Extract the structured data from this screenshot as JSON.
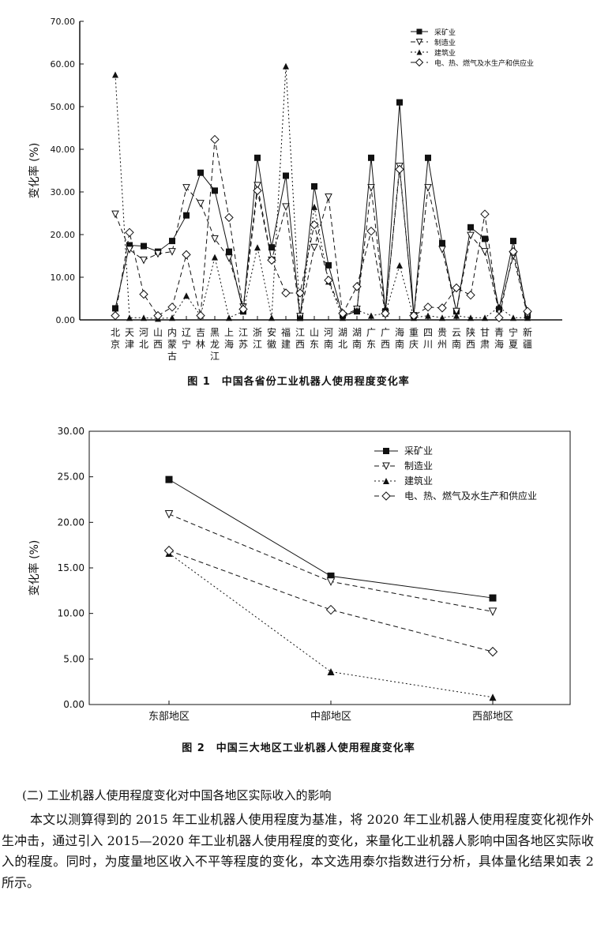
{
  "figure1": {
    "caption": "图 1　中国各省份工业机器人使用程度变化率",
    "ylabel": "变化率 (%)",
    "yticks": [
      "0.00",
      "10.00",
      "20.00",
      "30.00",
      "40.00",
      "50.00",
      "60.00",
      "70.00"
    ]
  },
  "figure2": {
    "caption": "图 2　中国三大地区工业机器人使用程度变化率",
    "ylabel": "变化率 (%)",
    "yticks": [
      "0.00",
      "5.00",
      "10.00",
      "15.00",
      "20.00",
      "25.00",
      "30.00"
    ]
  },
  "body": {
    "section_title": "(二) 工业机器人使用程度变化对中国各地区实际收入的影响",
    "paragraph": "本文以测算得到的 2015 年工业机器人使用程度为基准，将 2020 年工业机器人使用程度变化视作外生冲击，通过引入 2015—2020 年工业机器人使用程度的变化，来量化工业机器人影响中国各地区实际收入的程度。同时，为度量地区收入不平等程度的变化，本文选用泰尔指数进行分析，具体量化结果如表 2 所示。"
  },
  "colors": {
    "line": "#111111",
    "background": "#ffffff"
  },
  "chart_data": [
    {
      "type": "line",
      "title": "图 1　中国各省份工业机器人使用程度变化率",
      "xlabel": "",
      "ylabel": "变化率 (%)",
      "ylim": [
        0,
        70
      ],
      "grid": false,
      "legend_position": "top-right",
      "categories": [
        "北京",
        "天津",
        "河北",
        "山西",
        "内蒙古",
        "辽宁",
        "吉林",
        "黑龙江",
        "上海",
        "江苏",
        "浙江",
        "安徽",
        "福建",
        "江西",
        "山东",
        "河南",
        "湖北",
        "湖南",
        "广东",
        "广西",
        "海南",
        "重庆",
        "四川",
        "贵州",
        "云南",
        "陕西",
        "甘肃",
        "青海",
        "宁夏",
        "新疆"
      ],
      "series": [
        {
          "name": "采矿业",
          "marker": "square-filled",
          "dash": "solid",
          "values": [
            2.7,
            17.5,
            17.3,
            16.0,
            18.5,
            24.5,
            34.5,
            30.3,
            16.0,
            2.0,
            38.0,
            17.0,
            33.8,
            0.5,
            31.3,
            12.8,
            1.0,
            2.0,
            38.0,
            2.0,
            51.0,
            1.0,
            38.0,
            18.0,
            2.0,
            21.7,
            19.0,
            2.5,
            18.5,
            1.0
          ]
        },
        {
          "name": "制造业",
          "marker": "triangle-down-open",
          "dash": "dashed",
          "values": [
            24.8,
            16.5,
            14.0,
            15.5,
            16.0,
            31.0,
            27.3,
            19.0,
            14.5,
            3.0,
            31.5,
            14.0,
            26.5,
            0.8,
            17.0,
            28.8,
            1.0,
            2.5,
            31.0,
            1.5,
            36.0,
            1.0,
            31.0,
            16.5,
            2.0,
            19.8,
            16.0,
            2.0,
            15.0,
            1.0
          ]
        },
        {
          "name": "建筑业",
          "marker": "triangle-up-filled",
          "dash": "dotted",
          "values": [
            57.5,
            0.5,
            0.5,
            0.3,
            0.5,
            5.7,
            1.0,
            14.7,
            0.5,
            2.0,
            17.0,
            0.5,
            59.5,
            0.5,
            26.5,
            9.0,
            0.5,
            2.3,
            1.0,
            1.5,
            12.8,
            0.5,
            1.0,
            0.5,
            1.0,
            0.5,
            0.5,
            3.0,
            0.5,
            0.5
          ]
        },
        {
          "name": "电、热、燃气及水生产和供应业",
          "marker": "diamond-open",
          "dash": "dashed",
          "values": [
            1.0,
            20.5,
            6.0,
            1.0,
            3.0,
            15.3,
            1.0,
            42.3,
            24.0,
            2.5,
            30.3,
            14.0,
            6.3,
            6.3,
            22.3,
            9.3,
            1.5,
            7.8,
            20.8,
            1.5,
            35.3,
            1.0,
            3.0,
            2.8,
            7.5,
            5.8,
            24.8,
            0.5,
            16.0,
            2.0
          ]
        }
      ]
    },
    {
      "type": "line",
      "title": "图 2　中国三大地区工业机器人使用程度变化率",
      "xlabel": "",
      "ylabel": "变化率 (%)",
      "ylim": [
        0,
        30
      ],
      "grid": false,
      "legend_position": "top-right",
      "categories": [
        "东部地区",
        "中部地区",
        "西部地区"
      ],
      "series": [
        {
          "name": "采矿业",
          "marker": "square-filled",
          "dash": "solid",
          "values": [
            24.7,
            14.1,
            11.7
          ]
        },
        {
          "name": "制造业",
          "marker": "triangle-down-open",
          "dash": "dashed",
          "values": [
            20.9,
            13.5,
            10.2
          ]
        },
        {
          "name": "建筑业",
          "marker": "triangle-up-filled",
          "dash": "dotted",
          "values": [
            16.6,
            3.6,
            0.8
          ]
        },
        {
          "name": "电、热、燃气及水生产和供应业",
          "marker": "diamond-open",
          "dash": "dashed",
          "values": [
            16.9,
            10.4,
            5.8
          ]
        }
      ]
    }
  ]
}
